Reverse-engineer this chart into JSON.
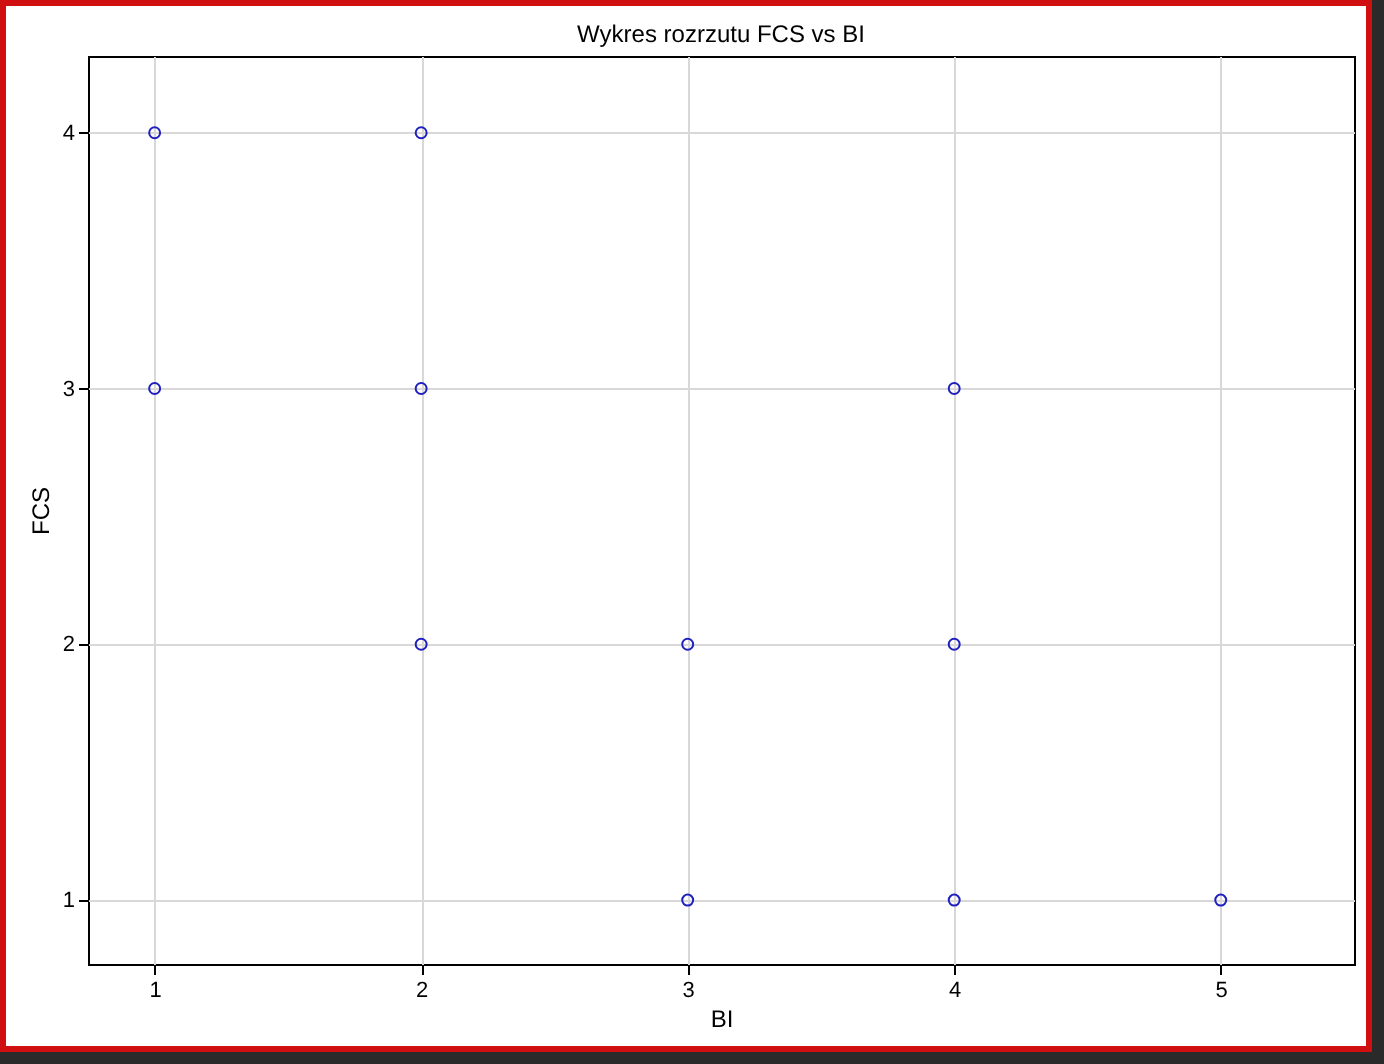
{
  "chart_data": {
    "type": "scatter",
    "title": "Wykres rozrzutu FCS vs BI",
    "xlabel": "BI",
    "ylabel": "FCS",
    "x": [
      1,
      2,
      1,
      2,
      4,
      2,
      3,
      4,
      3,
      4,
      5
    ],
    "series": [
      {
        "color": "#2020c0",
        "values": [
          4,
          4,
          3,
          3,
          3,
          2,
          2,
          2,
          1,
          1,
          1
        ]
      }
    ],
    "xlim": [
      0.75,
      5.5
    ],
    "xticks": [
      1,
      2,
      3,
      4,
      5
    ],
    "ylim": [
      0.75,
      4.3
    ],
    "yticks": [
      1,
      2,
      3,
      4
    ],
    "grid": true,
    "marker": "circle"
  }
}
